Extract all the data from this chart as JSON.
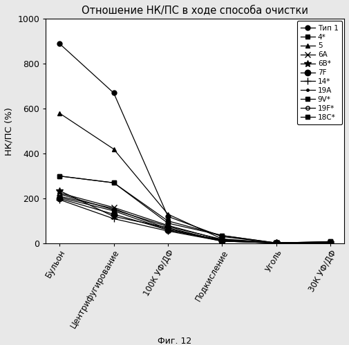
{
  "title": "Отношение НК/ПС в ходе способа очистки",
  "xlabel_steps": [
    "Бульон",
    "Центрифугирование",
    "100К УФ/ДФ",
    "Подкисление",
    "Уголь",
    "30К УФ/ДФ"
  ],
  "ylabel": "НК/ПС (%)",
  "ylim": [
    0,
    1000
  ],
  "yticks": [
    0,
    200,
    400,
    600,
    800,
    1000
  ],
  "caption": "Фиг. 12",
  "bg_color": "#ffffff",
  "fig_bg_color": "#e8e8e8",
  "series": [
    {
      "label": "Тип 1",
      "marker": "o",
      "color": "#000000",
      "markersize": 5,
      "markerfacecolor": "#000000",
      "values": [
        890,
        670,
        120,
        30,
        2,
        2
      ]
    },
    {
      "label": "4*",
      "marker": "s",
      "color": "#000000",
      "markersize": 5,
      "markerfacecolor": "#000000",
      "values": [
        300,
        270,
        90,
        35,
        2,
        8
      ]
    },
    {
      "label": "5",
      "marker": "^",
      "color": "#000000",
      "markersize": 5,
      "markerfacecolor": "#000000",
      "values": [
        580,
        420,
        130,
        20,
        2,
        2
      ]
    },
    {
      "label": "6А",
      "marker": "x",
      "color": "#000000",
      "markersize": 6,
      "markerfacecolor": "#000000",
      "values": [
        225,
        160,
        80,
        15,
        2,
        2
      ]
    },
    {
      "label": "6В*",
      "marker": "*",
      "color": "#000000",
      "markersize": 7,
      "markerfacecolor": "#000000",
      "values": [
        235,
        120,
        70,
        10,
        2,
        2
      ]
    },
    {
      "label": "7F",
      "marker": "o",
      "color": "#000000",
      "markersize": 6,
      "markerfacecolor": "#000000",
      "values": [
        200,
        130,
        60,
        10,
        2,
        2
      ]
    },
    {
      "label": "14*",
      "marker": "+",
      "color": "#000000",
      "markersize": 7,
      "markerfacecolor": "#000000",
      "values": [
        195,
        110,
        55,
        10,
        2,
        2
      ]
    },
    {
      "label": "19А",
      "marker": ".",
      "color": "#000000",
      "markersize": 5,
      "markerfacecolor": "#000000",
      "values": [
        210,
        155,
        65,
        12,
        2,
        2
      ]
    },
    {
      "label": "9V*",
      "marker": "s",
      "color": "#000000",
      "markersize": 4,
      "markerfacecolor": "#000000",
      "values": [
        205,
        145,
        60,
        15,
        2,
        2
      ]
    },
    {
      "label": "19F*",
      "marker": "o",
      "color": "#000000",
      "markersize": 4,
      "markerfacecolor": "none",
      "values": [
        220,
        150,
        75,
        18,
        2,
        2
      ]
    },
    {
      "label": "18C*",
      "marker": "s",
      "color": "#000000",
      "markersize": 5,
      "markerfacecolor": "#000000",
      "values": [
        300,
        270,
        100,
        35,
        2,
        8
      ]
    }
  ]
}
